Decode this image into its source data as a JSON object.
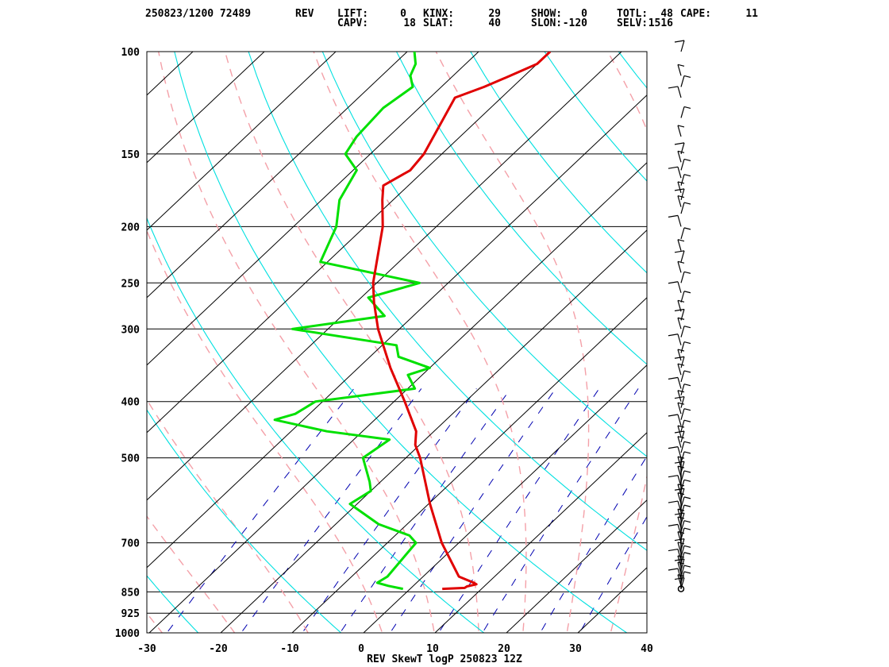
{
  "header": {
    "stamp": "250823/1200 72489",
    "station": "REV",
    "indices": [
      {
        "label": "LIFT:",
        "value": "0"
      },
      {
        "label": "KINX:",
        "value": "29"
      },
      {
        "label": "SHOW:",
        "value": "0"
      },
      {
        "label": "TOTL:",
        "value": "48"
      },
      {
        "label": "CAPE:",
        "value": "11"
      },
      {
        "label": "CAPV:",
        "value": "18"
      },
      {
        "label": "SLAT:",
        "value": "40"
      },
      {
        "label": "SLON:",
        "value": "-120"
      },
      {
        "label": "SELV:",
        "value": "1516"
      }
    ]
  },
  "colors": {
    "temperature": "#e00000",
    "dewpoint": "#00e000",
    "dry_adiabat": "#00e0e0",
    "moist_adiabat": "#f4a0a8",
    "mixing_ratio": "#0000b0",
    "isotherm": "#000000",
    "wind_barb": "#000000"
  },
  "chart_data": {
    "type": "skew-t log-p",
    "title": "REV SkewT logP 250823 12Z",
    "x_ticks": [
      "-30",
      "-20",
      "-10",
      "0",
      "10",
      "20",
      "30",
      "40"
    ],
    "xlim": [
      -30,
      40
    ],
    "pressure_levels": [
      "100",
      "150",
      "200",
      "250",
      "300",
      "400",
      "500",
      "700",
      "850",
      "925",
      "1000"
    ],
    "ylim": [
      1000,
      100
    ],
    "temperature_profile": [
      [
        840,
        4.5
      ],
      [
        837,
        7.5
      ],
      [
        832,
        7.6
      ],
      [
        825,
        8.6
      ],
      [
        820,
        8.0
      ],
      [
        800,
        5.0
      ],
      [
        700,
        -2.4
      ],
      [
        600,
        -9.8
      ],
      [
        500,
        -18.0
      ],
      [
        475,
        -20.6
      ],
      [
        450,
        -22.5
      ],
      [
        400,
        -28.5
      ],
      [
        350,
        -35.5
      ],
      [
        300,
        -43.0
      ],
      [
        270,
        -47.5
      ],
      [
        250,
        -50.5
      ],
      [
        200,
        -57.5
      ],
      [
        180,
        -61.5
      ],
      [
        170,
        -63.5
      ],
      [
        160,
        -62.0
      ],
      [
        150,
        -62.5
      ],
      [
        120,
        -66.5
      ],
      [
        115,
        -64.0
      ],
      [
        110,
        -62.0
      ],
      [
        105,
        -60.0
      ],
      [
        100,
        -60.0
      ]
    ],
    "dewpoint_profile": [
      [
        840,
        -1.0
      ],
      [
        830,
        -3.5
      ],
      [
        820,
        -5.5
      ],
      [
        800,
        -5.0
      ],
      [
        700,
        -6.0
      ],
      [
        680,
        -8.0
      ],
      [
        650,
        -14.0
      ],
      [
        600,
        -21.0
      ],
      [
        570,
        -20.0
      ],
      [
        550,
        -21.5
      ],
      [
        500,
        -26.0
      ],
      [
        465,
        -25.0
      ],
      [
        450,
        -35.0
      ],
      [
        430,
        -44.0
      ],
      [
        420,
        -42.0
      ],
      [
        400,
        -41.0
      ],
      [
        380,
        -29.0
      ],
      [
        360,
        -32.0
      ],
      [
        350,
        -30.0
      ],
      [
        335,
        -36.0
      ],
      [
        320,
        -38.0
      ],
      [
        300,
        -55.0
      ],
      [
        285,
        -44.0
      ],
      [
        265,
        -49.0
      ],
      [
        250,
        -44.0
      ],
      [
        230,
        -61.0
      ],
      [
        200,
        -64.0
      ],
      [
        180,
        -67.5
      ],
      [
        160,
        -69.5
      ],
      [
        150,
        -73.5
      ],
      [
        140,
        -74.5
      ],
      [
        125,
        -75.0
      ],
      [
        115,
        -74.0
      ],
      [
        110,
        -76.0
      ],
      [
        105,
        -77.0
      ],
      [
        100,
        -79.0
      ]
    ],
    "wind_pressures": [
      840,
      830,
      820,
      810,
      800,
      790,
      780,
      770,
      760,
      750,
      740,
      730,
      720,
      700,
      690,
      680,
      670,
      660,
      650,
      640,
      630,
      620,
      610,
      600,
      590,
      580,
      570,
      560,
      550,
      540,
      530,
      520,
      510,
      500,
      490,
      480,
      470,
      460,
      450,
      440,
      430,
      420,
      410,
      400,
      390,
      380,
      370,
      360,
      350,
      340,
      330,
      320,
      310,
      300,
      290,
      280,
      270,
      260,
      250,
      240,
      230,
      220,
      210,
      200,
      190,
      185,
      180,
      175,
      170,
      165,
      160,
      155,
      150,
      140,
      130,
      120,
      115,
      110,
      100
    ],
    "grid": true
  }
}
